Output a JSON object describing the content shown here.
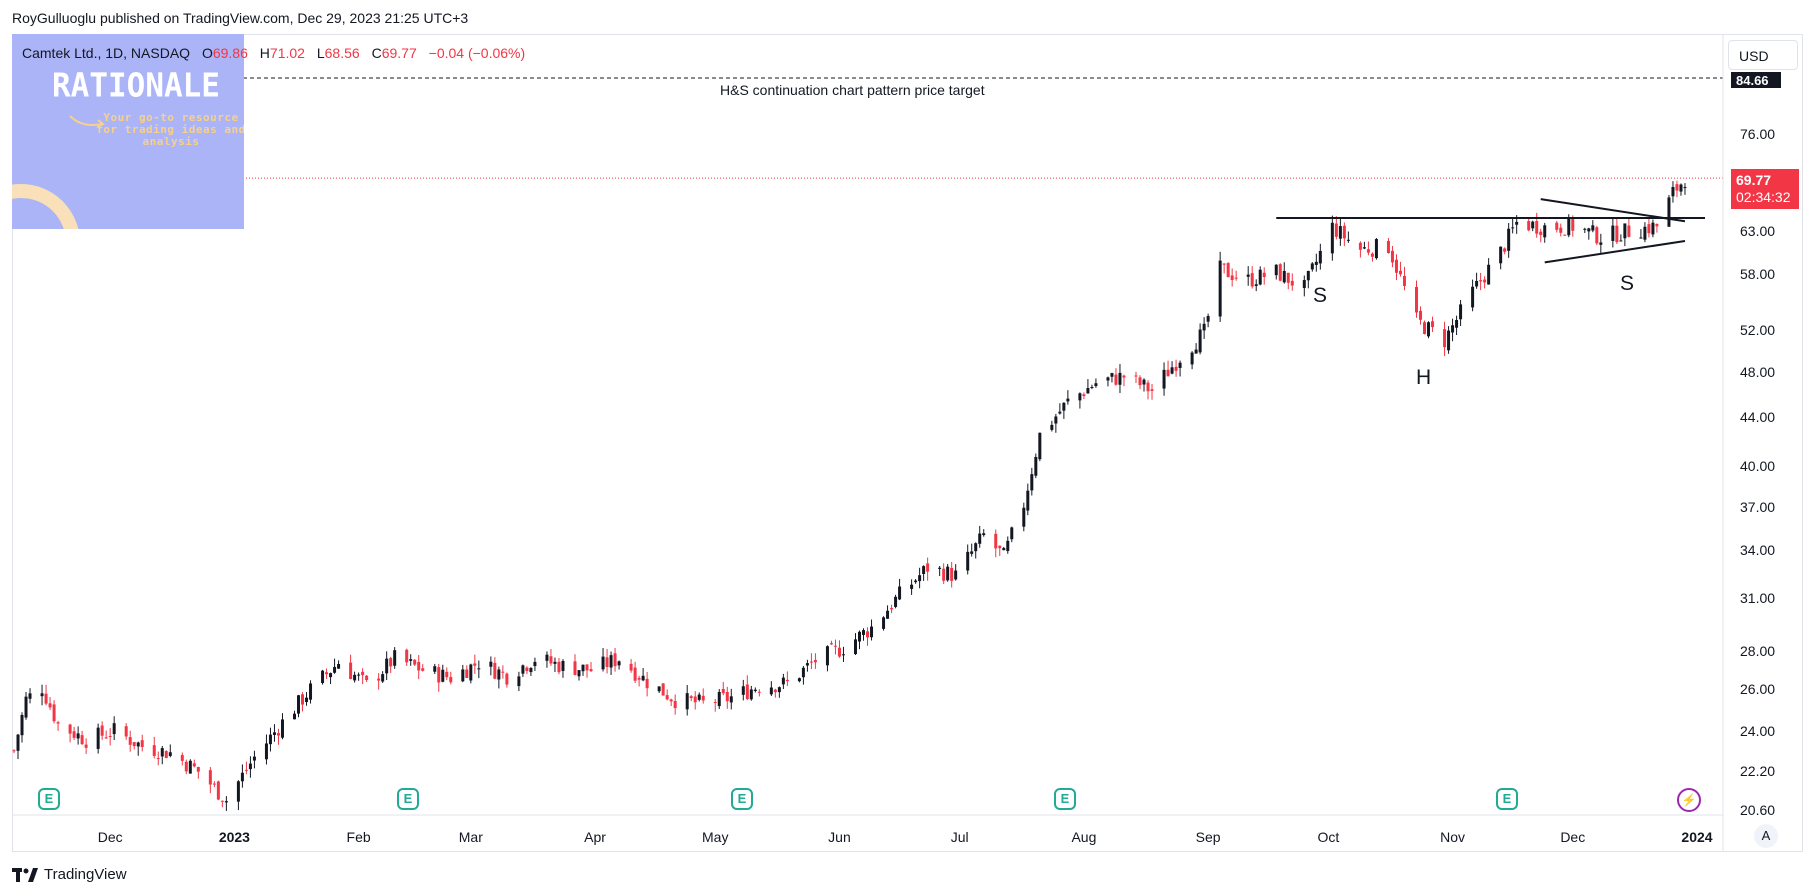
{
  "header": {
    "publish_line": "RoyGulluoglu published on TradingView.com, Dec 29, 2023 21:25 UTC+3"
  },
  "legend": {
    "symbol": "Camtek Ltd., 1D, NASDAQ",
    "open_label": "O",
    "open": "69.86",
    "high_label": "H",
    "high": "71.02",
    "low_label": "L",
    "low": "68.56",
    "close_label": "C",
    "close": "69.77",
    "change": "−0.04 (−0.06%)"
  },
  "currency": "USD",
  "watermark": {
    "title": "RATIONALE",
    "subtitle": "Your go-to resource for trading ideas and analysis"
  },
  "annotations": {
    "target_text": "H&S continuation chart pattern price target",
    "left_shoulder": "S",
    "head": "H",
    "right_shoulder": "S"
  },
  "price_tag": {
    "price": "69.77",
    "countdown": "02:34:32"
  },
  "target_tag": "84.66",
  "footer": {
    "brand": "TradingView"
  },
  "auto_scale_button": "A",
  "earnings_badge": "E",
  "colors": {
    "up": "#131722",
    "down": "#f23645",
    "badge": "#22ab94",
    "watermark": "#aab4f7"
  },
  "chart_data": {
    "type": "candlestick",
    "title": "Camtek Ltd., 1D, NASDAQ",
    "y_scale": "log",
    "ylim": [
      20.6,
      86
    ],
    "y_ticks": [
      "76.00",
      "63.00",
      "58.00",
      "52.00",
      "48.00",
      "44.00",
      "40.00",
      "37.00",
      "34.00",
      "31.00",
      "28.00",
      "26.00",
      "24.00",
      "22.20",
      "20.60"
    ],
    "x_ticks": [
      {
        "label": "Dec",
        "date": "2022-12-01"
      },
      {
        "label": "2023",
        "date": "2023-01-01",
        "bold": true
      },
      {
        "label": "Feb",
        "date": "2023-02-01"
      },
      {
        "label": "Mar",
        "date": "2023-03-01"
      },
      {
        "label": "Apr",
        "date": "2023-04-01"
      },
      {
        "label": "May",
        "date": "2023-05-01"
      },
      {
        "label": "Jun",
        "date": "2023-06-01"
      },
      {
        "label": "Jul",
        "date": "2023-07-01"
      },
      {
        "label": "Aug",
        "date": "2023-08-01"
      },
      {
        "label": "Sep",
        "date": "2023-09-01"
      },
      {
        "label": "Oct",
        "date": "2023-10-01"
      },
      {
        "label": "Nov",
        "date": "2023-11-01"
      },
      {
        "label": "Dec",
        "date": "2023-12-01"
      },
      {
        "label": "2024",
        "date": "2024-01-01",
        "bold": true
      }
    ],
    "price_target": 84.66,
    "last_price": 69.77,
    "neckline": 64.6,
    "close_path": [
      {
        "date": "2022-11-07",
        "close": 23.1
      },
      {
        "date": "2022-11-10",
        "close": 25.5
      },
      {
        "date": "2022-11-14",
        "close": 26.1
      },
      {
        "date": "2022-11-18",
        "close": 24.3
      },
      {
        "date": "2022-11-25",
        "close": 23.6
      },
      {
        "date": "2022-12-02",
        "close": 24.0
      },
      {
        "date": "2022-12-09",
        "close": 23.3
      },
      {
        "date": "2022-12-16",
        "close": 23.0
      },
      {
        "date": "2022-12-23",
        "close": 22.2
      },
      {
        "date": "2022-12-30",
        "close": 21.0
      },
      {
        "date": "2023-01-06",
        "close": 22.8
      },
      {
        "date": "2023-01-13",
        "close": 24.4
      },
      {
        "date": "2023-01-20",
        "close": 26.0
      },
      {
        "date": "2023-01-27",
        "close": 27.4
      },
      {
        "date": "2023-02-03",
        "close": 26.2
      },
      {
        "date": "2023-02-10",
        "close": 27.6
      },
      {
        "date": "2023-02-17",
        "close": 27.0
      },
      {
        "date": "2023-02-24",
        "close": 26.6
      },
      {
        "date": "2023-03-03",
        "close": 27.4
      },
      {
        "date": "2023-03-10",
        "close": 26.7
      },
      {
        "date": "2023-03-17",
        "close": 27.6
      },
      {
        "date": "2023-03-24",
        "close": 27.2
      },
      {
        "date": "2023-03-31",
        "close": 27.0
      },
      {
        "date": "2023-04-07",
        "close": 27.6
      },
      {
        "date": "2023-04-14",
        "close": 26.4
      },
      {
        "date": "2023-04-21",
        "close": 25.5
      },
      {
        "date": "2023-04-28",
        "close": 25.3
      },
      {
        "date": "2023-05-05",
        "close": 25.6
      },
      {
        "date": "2023-05-12",
        "close": 26.2
      },
      {
        "date": "2023-05-19",
        "close": 26.3
      },
      {
        "date": "2023-05-26",
        "close": 27.5
      },
      {
        "date": "2023-06-02",
        "close": 28.2
      },
      {
        "date": "2023-06-09",
        "close": 29.3
      },
      {
        "date": "2023-06-16",
        "close": 31.2
      },
      {
        "date": "2023-06-23",
        "close": 32.9
      },
      {
        "date": "2023-06-30",
        "close": 32.4
      },
      {
        "date": "2023-07-07",
        "close": 35.0
      },
      {
        "date": "2023-07-12",
        "close": 33.6
      },
      {
        "date": "2023-07-17",
        "close": 37.2
      },
      {
        "date": "2023-07-21",
        "close": 42.5
      },
      {
        "date": "2023-07-28",
        "close": 45.3
      },
      {
        "date": "2023-08-04",
        "close": 47.0
      },
      {
        "date": "2023-08-11",
        "close": 47.6
      },
      {
        "date": "2023-08-18",
        "close": 46.3
      },
      {
        "date": "2023-08-25",
        "close": 49.4
      },
      {
        "date": "2023-08-31",
        "close": 51.8
      },
      {
        "date": "2023-09-04",
        "close": 58.5
      },
      {
        "date": "2023-09-11",
        "close": 57.3
      },
      {
        "date": "2023-09-18",
        "close": 58.2
      },
      {
        "date": "2023-09-25",
        "close": 56.4
      },
      {
        "date": "2023-10-02",
        "close": 63.5
      },
      {
        "date": "2023-10-09",
        "close": 60.8
      },
      {
        "date": "2023-10-16",
        "close": 61.2
      },
      {
        "date": "2023-10-23",
        "close": 53.0
      },
      {
        "date": "2023-10-30",
        "close": 51.0
      },
      {
        "date": "2023-11-06",
        "close": 56.0
      },
      {
        "date": "2023-11-13",
        "close": 60.5
      },
      {
        "date": "2023-11-17",
        "close": 64.0
      },
      {
        "date": "2023-11-24",
        "close": 63.5
      },
      {
        "date": "2023-12-01",
        "close": 63.6
      },
      {
        "date": "2023-12-08",
        "close": 62.3
      },
      {
        "date": "2023-12-15",
        "close": 63.0
      },
      {
        "date": "2023-12-22",
        "close": 63.6
      },
      {
        "date": "2023-12-26",
        "close": 67.8
      },
      {
        "date": "2023-12-29",
        "close": 69.77
      }
    ]
  }
}
